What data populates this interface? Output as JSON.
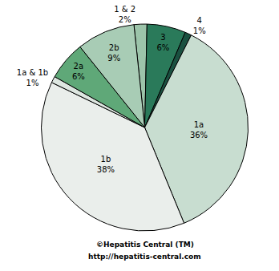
{
  "chart_data": {
    "type": "pie",
    "categories": [
      "1 & 2",
      "3",
      "4",
      "1a",
      "1b",
      "1a & 1b",
      "2a",
      "2b"
    ],
    "values": [
      2,
      6,
      1,
      36,
      38,
      1,
      6,
      9
    ],
    "value_labels": [
      "2%",
      "6%",
      "1%",
      "36%",
      "38%",
      "1%",
      "6%",
      "9%"
    ],
    "colors": [
      "#9cc4aa",
      "#2a7a5a",
      "#1a5040",
      "#c8ddd0",
      "#eaeeeb",
      "#dde6e0",
      "#5fa878",
      "#a8ccb5"
    ],
    "data_labels": true,
    "annotations": [
      "©Hepatitis Central (TM)",
      "http://hepatitis-central.com"
    ]
  }
}
